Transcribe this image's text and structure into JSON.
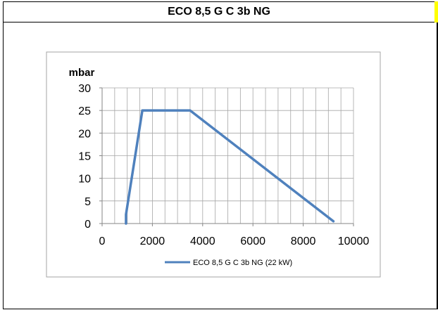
{
  "header": {
    "title": "ECO 8,5 G C 3b NG"
  },
  "colors": {
    "series_line": "#4f81bd",
    "grid": "#a6a6a6",
    "plot_border": "#a6a6a6",
    "title_marker": "#ffff00"
  },
  "chart_data": {
    "type": "line",
    "title": "",
    "xlabel": "",
    "ylabel": "mbar",
    "xlim": [
      0,
      10000
    ],
    "ylim": [
      0,
      30
    ],
    "x_ticks": [
      0,
      2000,
      4000,
      6000,
      8000,
      10000
    ],
    "y_ticks": [
      0,
      5,
      10,
      15,
      20,
      25,
      30
    ],
    "x_tick_labels": [
      "0",
      "2000",
      "4000",
      "6000",
      "8000",
      "10000"
    ],
    "y_tick_labels": [
      "0",
      "5",
      "10",
      "15",
      "20",
      "25",
      "30"
    ],
    "grid": true,
    "legend_position": "bottom",
    "series": [
      {
        "name": "ECO 8,5 G C 3b NG (22 kW)",
        "points": [
          [
            950,
            0
          ],
          [
            950,
            2
          ],
          [
            1600,
            25
          ],
          [
            3500,
            25
          ],
          [
            9200,
            0.5
          ]
        ]
      }
    ]
  }
}
